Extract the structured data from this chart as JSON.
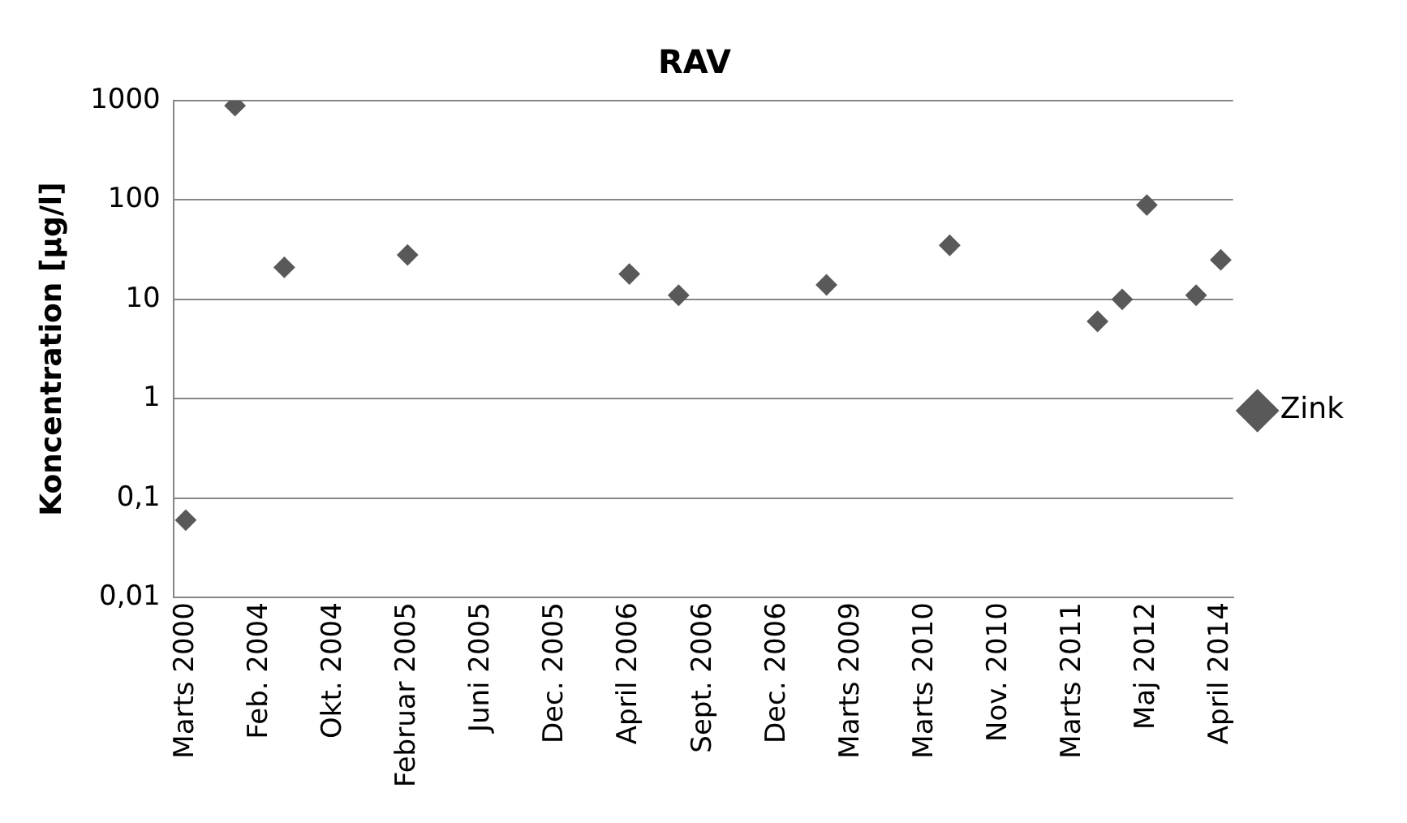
{
  "chart_data": {
    "type": "scatter",
    "title": "RAV",
    "ylabel": "Koncentration [µg/l]",
    "categories": [
      "Marts 2000",
      null,
      null,
      "Feb. 2004",
      null,
      null,
      "Okt. 2004",
      null,
      null,
      "Februar 2005",
      null,
      null,
      "Juni 2005",
      null,
      null,
      "Dec. 2005",
      null,
      null,
      "April 2006",
      null,
      null,
      "Sept. 2006",
      null,
      null,
      "Dec. 2006",
      null,
      null,
      "Marts 2009",
      null,
      null,
      "Marts 2010",
      null,
      null,
      "Nov. 2010",
      null,
      null,
      "Marts 2011",
      null,
      null,
      "Maj 2012",
      null,
      null,
      "April 2014"
    ],
    "series": [
      {
        "name": "Zink",
        "color": "#595959",
        "values": [
          0.06,
          null,
          890,
          null,
          21,
          null,
          null,
          null,
          null,
          28,
          null,
          null,
          null,
          null,
          null,
          null,
          null,
          null,
          18,
          null,
          11,
          null,
          null,
          null,
          null,
          null,
          14,
          null,
          null,
          null,
          null,
          35,
          null,
          null,
          null,
          null,
          null,
          6,
          10,
          89,
          null,
          11,
          25
        ]
      }
    ],
    "log": "y",
    "ylim": [
      0.01,
      1000
    ],
    "yticks": [
      {
        "value": 0.01,
        "label": "0,01"
      },
      {
        "value": 0.1,
        "label": "0,1"
      },
      {
        "value": 1,
        "label": "1"
      },
      {
        "value": 10,
        "label": "10"
      },
      {
        "value": 100,
        "label": "100"
      },
      {
        "value": 1000,
        "label": "1000"
      }
    ],
    "grid": "y",
    "legend": "right",
    "marker": "diamond"
  }
}
